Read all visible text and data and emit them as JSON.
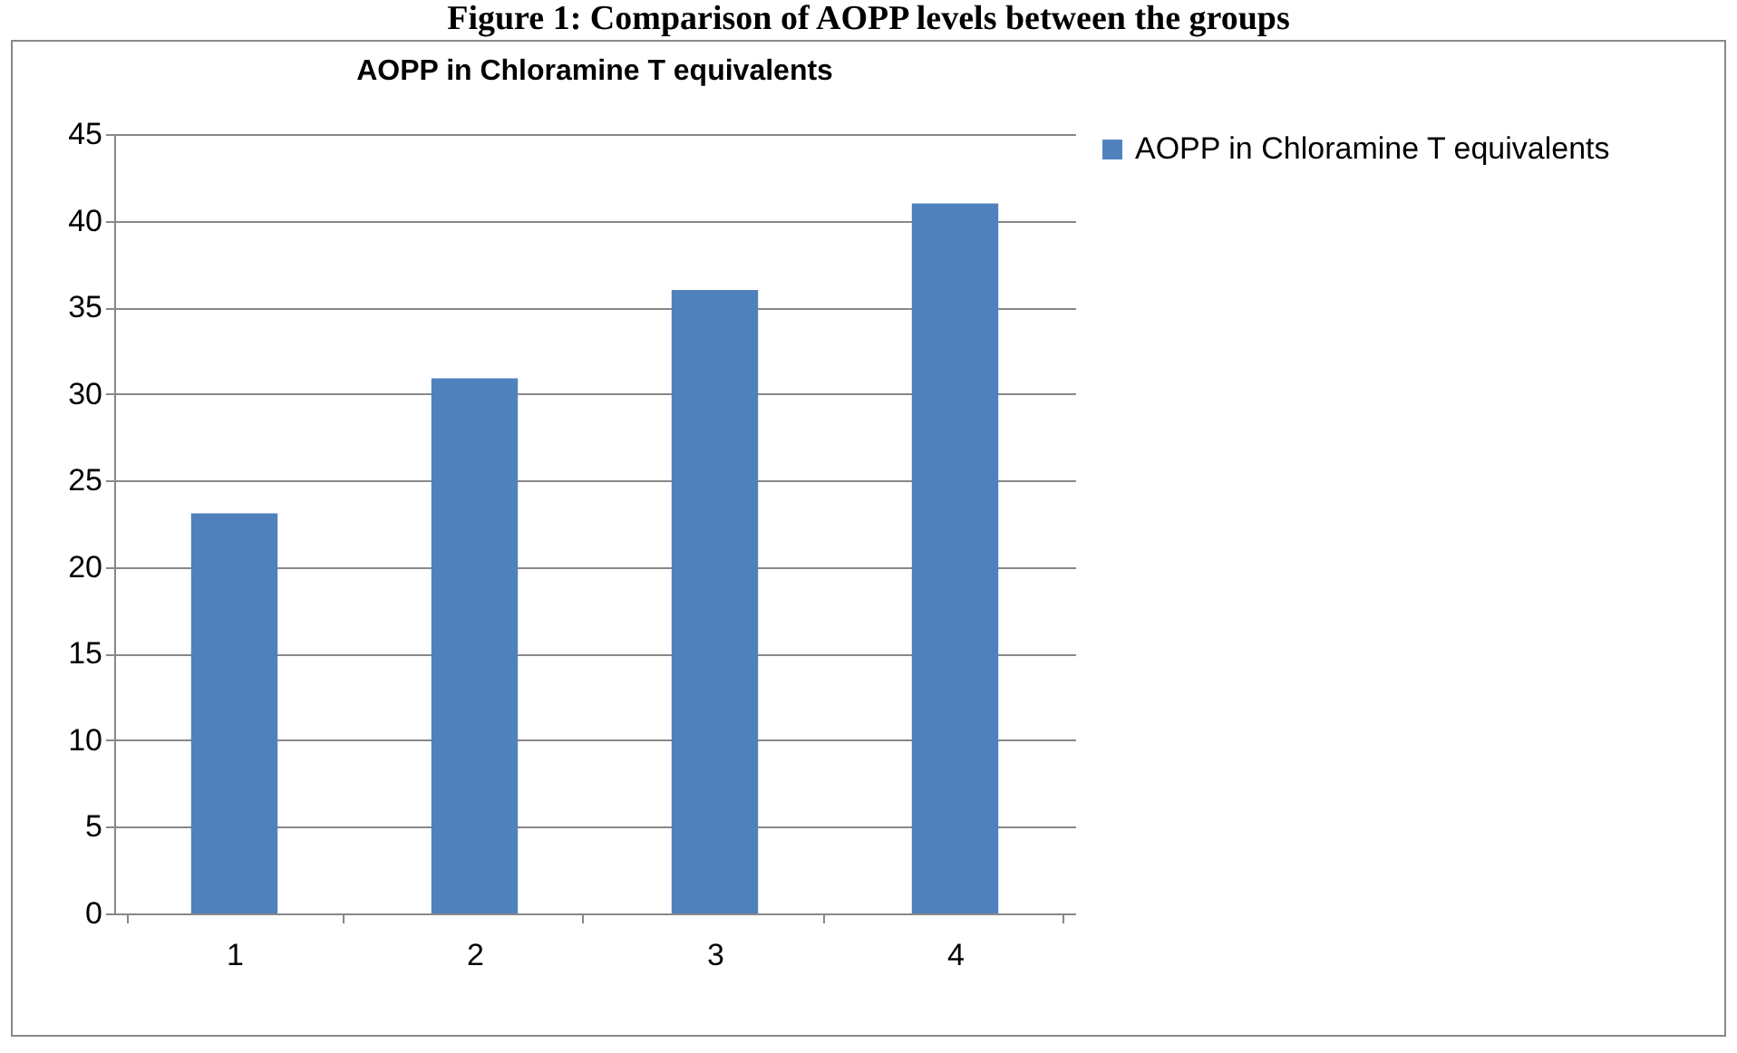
{
  "chart_data": {
    "type": "bar",
    "title": "AOPP in Chloramine T equivalents",
    "annotations": [
      "Figure 1: Comparison of AOPP levels between the groups"
    ],
    "categories": [
      "1",
      "2",
      "3",
      "4"
    ],
    "series": [
      {
        "name": "AOPP in Chloramine T equivalents",
        "color": "#4f81bd",
        "values": [
          23.1,
          30.9,
          36,
          41
        ]
      }
    ],
    "ylim": [
      0,
      45
    ],
    "yticks": [
      0,
      5,
      10,
      15,
      20,
      25,
      30,
      35,
      40,
      45
    ],
    "grid": "y",
    "legend": "right"
  }
}
